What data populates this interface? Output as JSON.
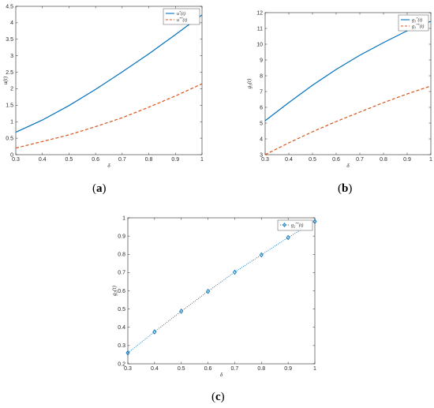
{
  "captions": {
    "a": "a",
    "b": "b",
    "c": "c"
  },
  "chart_data": [
    {
      "type": "line",
      "panel": "a",
      "xlabel": "δ",
      "ylabel": "u(t)",
      "xlim": [
        0.3,
        1
      ],
      "ylim": [
        0,
        4.5
      ],
      "xticks": [
        0.3,
        0.4,
        0.5,
        0.6,
        0.7,
        0.8,
        0.9,
        1
      ],
      "xtick_labels": [
        "0.3",
        "0.4",
        "0.5",
        "0.6",
        "0.7",
        "0.8",
        "0.9",
        "1"
      ],
      "yticks": [
        0,
        0.5,
        1,
        1.5,
        2,
        2.5,
        3,
        3.5,
        4,
        4.5
      ],
      "ytick_labels": [
        "0",
        "0.5",
        "1",
        "1.5",
        "2",
        "2.5",
        "3",
        "3.5",
        "4",
        "4.5"
      ],
      "legend": "top-right",
      "series": [
        {
          "name": "u*(t)",
          "style": "solid",
          "color": "#0072BD",
          "x": [
            0.3,
            0.4,
            0.5,
            0.6,
            0.7,
            0.8,
            0.9,
            1.0
          ],
          "y": [
            0.68,
            1.05,
            1.49,
            1.98,
            2.51,
            3.06,
            3.64,
            4.24
          ]
        },
        {
          "name": "u**(t)",
          "style": "dashed",
          "color": "#D95319",
          "x": [
            0.3,
            0.4,
            0.5,
            0.6,
            0.7,
            0.8,
            0.9,
            1.0
          ],
          "y": [
            0.2,
            0.4,
            0.6,
            0.85,
            1.12,
            1.44,
            1.78,
            2.15
          ]
        }
      ]
    },
    {
      "type": "line",
      "panel": "b",
      "xlabel": "δ",
      "ylabel": "g1(t)",
      "xlim": [
        0.3,
        1
      ],
      "ylim": [
        3,
        12
      ],
      "xticks": [
        0.3,
        0.4,
        0.5,
        0.6,
        0.7,
        0.8,
        0.9,
        1
      ],
      "xtick_labels": [
        "0.3",
        "0.4",
        "0.5",
        "0.6",
        "0.7",
        "0.8",
        "0.9",
        "1"
      ],
      "yticks": [
        3,
        4,
        5,
        6,
        7,
        8,
        9,
        10,
        11,
        12
      ],
      "ytick_labels": [
        "3",
        "4",
        "5",
        "6",
        "7",
        "8",
        "9",
        "10",
        "11",
        "12"
      ],
      "legend": "top-right",
      "series": [
        {
          "name": "g1*(t)",
          "style": "solid",
          "color": "#0072BD",
          "x": [
            0.3,
            0.4,
            0.5,
            0.6,
            0.7,
            0.8,
            0.9,
            1.0
          ],
          "y": [
            5.15,
            6.3,
            7.4,
            8.4,
            9.3,
            10.1,
            10.85,
            11.45
          ]
        },
        {
          "name": "g1**(t)",
          "style": "dashed",
          "color": "#D95319",
          "x": [
            0.3,
            0.4,
            0.5,
            0.6,
            0.7,
            0.8,
            0.9,
            1.0
          ],
          "y": [
            3.0,
            3.75,
            4.45,
            5.1,
            5.7,
            6.3,
            6.85,
            7.35
          ]
        }
      ]
    },
    {
      "type": "line",
      "panel": "c",
      "xlabel": "δ",
      "ylabel": "g2(t)",
      "xlim": [
        0.3,
        1
      ],
      "ylim": [
        0.2,
        1
      ],
      "xticks": [
        0.3,
        0.4,
        0.5,
        0.6,
        0.7,
        0.8,
        0.9,
        1
      ],
      "xtick_labels": [
        "0.3",
        "0.4",
        "0.5",
        "0.6",
        "0.7",
        "0.8",
        "0.9",
        "1"
      ],
      "yticks": [
        0.2,
        0.3,
        0.4,
        0.5,
        0.6,
        0.7,
        0.8,
        0.9,
        1
      ],
      "ytick_labels": [
        "0.2",
        "0.3",
        "0.4",
        "0.5",
        "0.6",
        "0.7",
        "0.8",
        "0.9",
        "1"
      ],
      "legend": "top-right",
      "series": [
        {
          "name": "g2**(t)",
          "style": "dotted-diamond",
          "color": "#0072BD",
          "x": [
            0.3,
            0.4,
            0.5,
            0.6,
            0.7,
            0.8,
            0.9,
            1.0
          ],
          "y": [
            0.26,
            0.375,
            0.488,
            0.597,
            0.702,
            0.797,
            0.892,
            0.98
          ]
        }
      ]
    }
  ]
}
